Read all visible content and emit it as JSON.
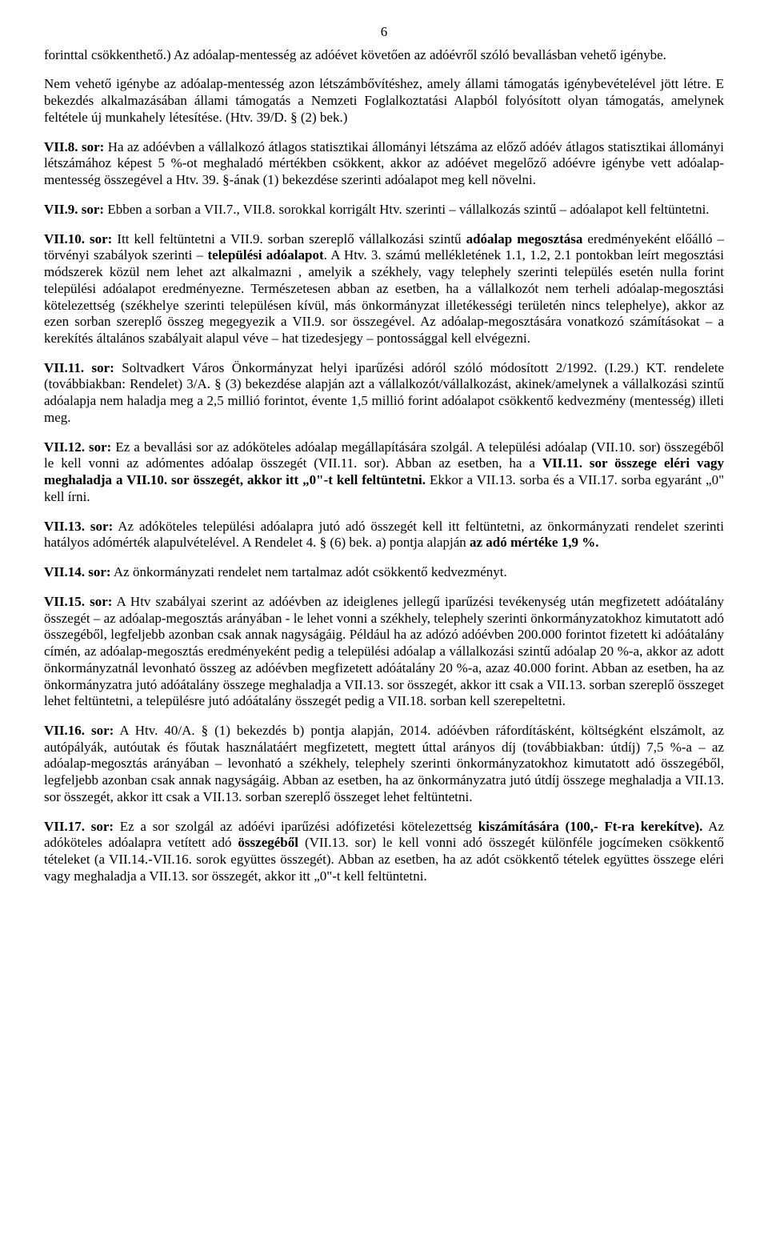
{
  "page_number": "6",
  "paragraphs": [
    {
      "html": "forinttal csökkenthető.) Az adóalap-mentesség az adóévet követően az adóévről szóló bevallásban vehető igénybe."
    },
    {
      "html": "Nem vehető igénybe az adóalap-mentesség azon létszámbővítéshez, amely állami támogatás igénybevételével jött létre. E bekezdés alkalmazásában állami támogatás a Nemzeti Foglalkoztatási Alapból folyósított olyan támogatás, amelynek feltétele új munkahely létesítése. (Htv. 39/D. § (2) bek.)"
    },
    {
      "html": "<span class='bold'>VII.8. sor:</span> Ha az adóévben a vállalkozó átlagos statisztikai állományi létszáma az előző adóév átlagos statisztikai állományi létszámához képest 5 %-ot meghaladó mértékben csökkent, akkor az adóévet megelőző adóévre igénybe vett adóalap-mentesség összegével a Htv. 39. §-ának (1) bekezdése szerinti adóalapot meg kell növelni."
    },
    {
      "html": "<span class='bold'>VII.9. sor:</span> Ebben a sorban a VII.7., VII.8. sorokkal korrigált Htv. szerinti – vállalkozás szintű – adóalapot kell feltüntetni."
    },
    {
      "html": "<span class='bold'>VII.10. sor:</span> Itt kell feltüntetni a VII.9. sorban szereplő vállalkozási szintű <span class='bold'>adóalap megosztása</span> eredményeként előálló – törvényi szabályok szerinti – <span class='bold'>települési adóalapot</span>. A Htv. 3. számú mellékletének 1.1, 1.2, 2.1 pontokban leírt megosztási módszerek közül nem lehet azt alkalmazni , amelyik a székhely, vagy telephely szerinti település esetén nulla forint települési adóalapot eredményezne. Természetesen abban az esetben, ha a vállalkozót nem terheli adóalap-megosztási kötelezettség (székhelye szerinti településen kívül, más önkormányzat illetékességi területén nincs telephelye), akkor az ezen sorban szereplő összeg megegyezik a VII.9. sor összegével. Az adóalap-megosztására vonatkozó számításokat – a kerekítés általános szabályait alapul véve – hat tizedesjegy – pontossággal kell elvégezni."
    },
    {
      "html": "<span class='bold'>VII.11. sor:</span> Soltvadkert Város Önkormányzat helyi iparűzési adóról szóló módosított 2/1992. (I.29.) KT. rendelete (továbbiakban: Rendelet) 3/A. § (3) bekezdése alapján azt a vállalkozót/vállalkozást, akinek/amelynek a vállalkozási szintű adóalapja nem haladja meg a 2,5 millió forintot, évente 1,5 millió forint adóalapot csökkentő kedvezmény (mentesség) illeti meg."
    },
    {
      "html": "<span class='bold'>VII.12. sor:</span> Ez a bevallási sor az adóköteles adóalap megállapítására szolgál. A települési adóalap (VII.10. sor) összegéből le kell vonni az adómentes adóalap összegét (VII.11. sor). Abban az esetben, ha a <span class='bold'>VII.11. sor összege eléri vagy meghaladja a VII.10. sor összegét, akkor itt „0\"-t kell feltüntetni.</span> Ekkor a VII.13. sorba és a VII.17. sorba egyaránt „0\" kell írni."
    },
    {
      "html": "<span class='bold'>VII.13. sor:</span> Az adóköteles települési adóalapra jutó adó összegét kell itt feltüntetni, az önkormányzati rendelet szerinti hatályos adómérték alapulvételével. A Rendelet 4. § (6) bek. a) pontja alapján <span class='bold'>az adó mértéke 1,9 %.</span>"
    },
    {
      "html": "<span class='bold'>VII.14. sor:</span> Az önkormányzati rendelet nem tartalmaz adót csökkentő kedvezményt."
    },
    {
      "html": "<span class='bold'>VII.15. sor:</span> A Htv szabályai szerint az adóévben az ideiglenes jellegű iparűzési tevékenység után megfizetett adóátalány összegét – az adóalap-megosztás arányában - le lehet vonni a székhely, telephely szerinti önkormányzatokhoz kimutatott adó összegéből, legfeljebb azonban csak annak nagyságáig. Például ha az adózó adóévben 200.000 forintot fizetett ki adóátalány címén, az adóalap-megosztás eredményeként pedig a települési adóalap a vállalkozási szintű adóalap 20 %-a, akkor az adott önkormányzatnál levonható összeg az adóévben megfizetett adóátalány 20 %-a, azaz 40.000 forint. Abban az esetben, ha az önkormányzatra jutó adóátalány összege meghaladja a VII.13. sor összegét, akkor itt csak a VII.13. sorban szereplő összeget lehet feltüntetni, a településre jutó adóátalány összegét pedig a VII.18. sorban kell szerepeltetni."
    },
    {
      "html": "<span class='bold'>VII.16. sor:</span> A Htv. 40/A. § (1) bekezdés b) pontja alapján, 2014. adóévben ráfordításként, költségként elszámolt, az autópályák, autóutak és főutak használatáért megfizetett, megtett úttal arányos díj (továbbiakban: útdíj) 7,5 %-a – az adóalap-megosztás arányában – levonható a székhely, telephely szerinti önkormányzatokhoz kimutatott adó összegéből, legfeljebb azonban csak annak nagyságáig. Abban az esetben, ha az önkormányzatra jutó útdíj összege meghaladja a VII.13. sor összegét, akkor itt csak a VII.13. sorban szereplő összeget lehet feltüntetni."
    },
    {
      "html": "<span class='bold'>VII.17. sor:</span> Ez a sor szolgál az adóévi iparűzési adófizetési kötelezettség <span class='bold'>kiszámítására (100,- Ft-ra kerekítve).</span> Az adóköteles adóalapra vetített adó <span class='bold'>összegéből</span> (VII.13. sor) le kell vonni adó összegét különféle jogcímeken csökkentő tételeket (a VII.14.-VII.16. sorok együttes összegét). Abban az esetben, ha az adót csökkentő tételek együttes összege eléri vagy meghaladja a VII.13. sor összegét, akkor itt „0\"-t kell feltüntetni."
    }
  ]
}
